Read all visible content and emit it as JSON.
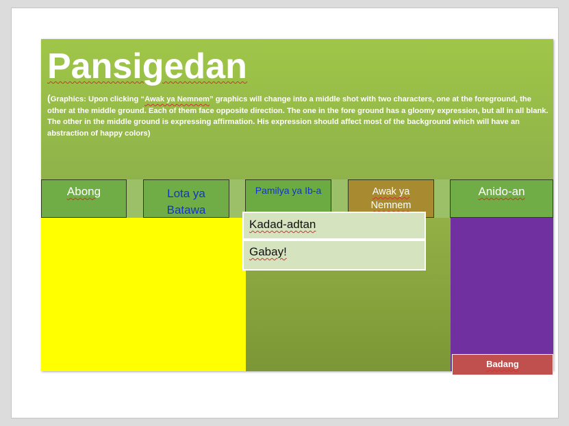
{
  "slide": {
    "title": "Pansigedan",
    "description_open": "(",
    "description_prefix": "Graphics: Upon clicking “",
    "description_link": "Awak ya Nemnem",
    "description_rest": "” graphics will change into a middle shot with two characters, one at the foreground, the other at the middle ground. Each of them face opposite direction. The one in the fore ground has a gloomy expression, but all in all blank. The other in the middle ground is expressing affirmation. His expression should affect most of the background which will have an abstraction of happy colors)"
  },
  "nav": {
    "tabs": [
      {
        "label": "Abong"
      },
      {
        "label": "Lota ya Batawa"
      },
      {
        "label": "Pamilya ya Ib-a"
      },
      {
        "label": "Awak ya Nemnem"
      },
      {
        "label": "Anido-an"
      }
    ]
  },
  "dropdown": {
    "items": [
      {
        "label": "Kadad-adtan"
      },
      {
        "label": "Gabay!"
      }
    ]
  },
  "badang_button": {
    "label": "Badang"
  },
  "colors": {
    "header_green": "#9fc648",
    "tab_green": "#70ad47",
    "active_tab": "#a88b30",
    "panel_yellow": "#ffff00",
    "panel_purple": "#7030a0",
    "dropdown_bg": "#d6e3bf",
    "badang_red": "#c0504d",
    "link_blue": "#0f36c8"
  }
}
